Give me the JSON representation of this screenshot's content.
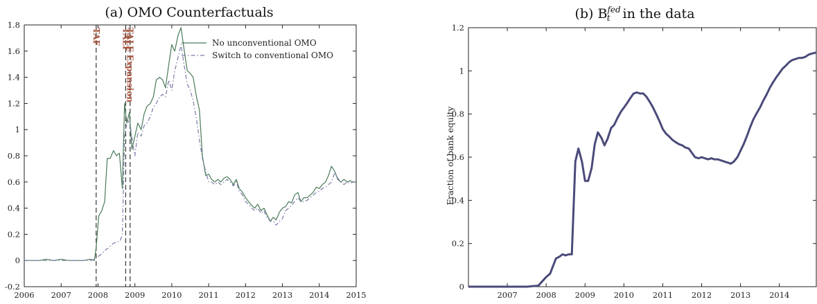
{
  "chart_data": [
    {
      "type": "line",
      "title": "(a) OMO Counterfactuals",
      "xlabel": "",
      "ylabel": "",
      "xlim": [
        2006,
        2015
      ],
      "ylim": [
        -0.2,
        1.8
      ],
      "x_ticks": [
        "2006",
        "2007",
        "2008",
        "2009",
        "2010",
        "2011",
        "2012",
        "2013",
        "2014",
        "2015"
      ],
      "y_ticks": [
        "-0.2",
        "0",
        "0.2",
        "0.4",
        "0.6",
        "0.8",
        "1",
        "1.2",
        "1.4",
        "1.6",
        "1.8"
      ],
      "grid": false,
      "legend_position": "top-right",
      "vlines": [
        {
          "x": 2007.95,
          "label": "TAF"
        },
        {
          "x": 2008.75,
          "label": "TALF"
        },
        {
          "x": 2008.87,
          "label": "TALF Expansion"
        }
      ],
      "series": [
        {
          "name": "No unconventional OMO",
          "color": "#4a7a5a",
          "style": "solid",
          "x": [
            2006.0,
            2006.2,
            2006.4,
            2006.6,
            2006.8,
            2007.0,
            2007.2,
            2007.4,
            2007.6,
            2007.8,
            2007.9,
            2007.95,
            2008.02,
            2008.1,
            2008.18,
            2008.25,
            2008.33,
            2008.42,
            2008.5,
            2008.58,
            2008.66,
            2008.72,
            2008.78,
            2008.85,
            2008.92,
            2009.0,
            2009.08,
            2009.17,
            2009.25,
            2009.33,
            2009.42,
            2009.5,
            2009.58,
            2009.67,
            2009.75,
            2009.83,
            2009.92,
            2010.0,
            2010.08,
            2010.17,
            2010.25,
            2010.33,
            2010.42,
            2010.5,
            2010.58,
            2010.67,
            2010.75,
            2010.83,
            2010.92,
            2011.0,
            2011.08,
            2011.17,
            2011.25,
            2011.33,
            2011.42,
            2011.5,
            2011.58,
            2011.67,
            2011.75,
            2011.83,
            2011.92,
            2012.0,
            2012.08,
            2012.17,
            2012.25,
            2012.33,
            2012.42,
            2012.5,
            2012.58,
            2012.67,
            2012.75,
            2012.83,
            2012.92,
            2013.0,
            2013.08,
            2013.17,
            2013.25,
            2013.33,
            2013.42,
            2013.5,
            2013.58,
            2013.67,
            2013.75,
            2013.83,
            2013.92,
            2014.0,
            2014.08,
            2014.17,
            2014.25,
            2014.33,
            2014.42,
            2014.5,
            2014.58,
            2014.67,
            2014.75,
            2014.83,
            2014.92,
            2015.0
          ],
          "y": [
            0.0,
            0.0,
            0.0,
            0.01,
            0.0,
            0.01,
            0.0,
            0.0,
            0.0,
            0.01,
            0.0,
            0.1,
            0.34,
            0.38,
            0.45,
            0.78,
            0.78,
            0.84,
            0.8,
            0.82,
            0.55,
            1.2,
            1.05,
            1.13,
            0.85,
            0.95,
            1.05,
            1.0,
            1.12,
            1.18,
            1.2,
            1.25,
            1.38,
            1.4,
            1.38,
            1.32,
            1.5,
            1.65,
            1.6,
            1.72,
            1.78,
            1.62,
            1.45,
            1.43,
            1.4,
            1.25,
            1.15,
            0.8,
            0.65,
            0.66,
            0.62,
            0.6,
            0.62,
            0.6,
            0.63,
            0.64,
            0.62,
            0.58,
            0.62,
            0.55,
            0.52,
            0.48,
            0.45,
            0.42,
            0.4,
            0.43,
            0.38,
            0.4,
            0.35,
            0.3,
            0.33,
            0.31,
            0.37,
            0.4,
            0.41,
            0.45,
            0.44,
            0.5,
            0.52,
            0.45,
            0.48,
            0.48,
            0.5,
            0.52,
            0.56,
            0.55,
            0.58,
            0.6,
            0.65,
            0.72,
            0.68,
            0.62,
            0.6,
            0.62,
            0.6,
            0.61,
            0.6,
            0.6
          ]
        },
        {
          "name": "Switch to conventional OMO",
          "color": "#7b7aa8",
          "style": "dashdot",
          "x": [
            2006.0,
            2006.2,
            2006.4,
            2006.6,
            2006.8,
            2007.0,
            2007.2,
            2007.4,
            2007.6,
            2007.8,
            2007.9,
            2008.0,
            2008.1,
            2008.2,
            2008.3,
            2008.4,
            2008.5,
            2008.6,
            2008.66,
            2008.72,
            2008.8,
            2008.88,
            2008.95,
            2009.0,
            2009.08,
            2009.17,
            2009.25,
            2009.33,
            2009.42,
            2009.5,
            2009.58,
            2009.67,
            2009.75,
            2009.83,
            2009.92,
            2010.0,
            2010.08,
            2010.17,
            2010.25,
            2010.33,
            2010.42,
            2010.5,
            2010.58,
            2010.67,
            2010.75,
            2010.83,
            2010.92,
            2011.0,
            2011.08,
            2011.17,
            2011.25,
            2011.33,
            2011.42,
            2011.5,
            2011.58,
            2011.67,
            2011.75,
            2011.83,
            2011.92,
            2012.0,
            2012.08,
            2012.17,
            2012.25,
            2012.33,
            2012.42,
            2012.5,
            2012.58,
            2012.67,
            2012.75,
            2012.83,
            2012.92,
            2013.0,
            2013.08,
            2013.17,
            2013.25,
            2013.33,
            2013.42,
            2013.5,
            2013.58,
            2013.67,
            2013.75,
            2013.83,
            2013.92,
            2014.0,
            2014.08,
            2014.17,
            2014.25,
            2014.33,
            2014.42,
            2014.5,
            2014.58,
            2014.67,
            2014.75,
            2014.83,
            2014.92,
            2015.0
          ],
          "y": [
            0.0,
            0.0,
            0.0,
            0.0,
            0.0,
            0.0,
            0.0,
            0.0,
            0.0,
            0.0,
            0.01,
            0.03,
            0.05,
            0.08,
            0.1,
            0.13,
            0.14,
            0.15,
            0.2,
            0.95,
            1.08,
            1.02,
            0.88,
            0.8,
            0.98,
            0.95,
            1.03,
            1.05,
            1.1,
            1.17,
            1.2,
            1.25,
            1.27,
            1.25,
            1.38,
            1.3,
            1.45,
            1.55,
            1.65,
            1.5,
            1.35,
            1.3,
            1.22,
            1.08,
            0.92,
            0.78,
            0.68,
            0.6,
            0.6,
            0.58,
            0.6,
            0.58,
            0.6,
            0.62,
            0.6,
            0.57,
            0.6,
            0.53,
            0.5,
            0.45,
            0.43,
            0.4,
            0.38,
            0.4,
            0.36,
            0.38,
            0.33,
            0.3,
            0.3,
            0.27,
            0.3,
            0.32,
            0.38,
            0.4,
            0.42,
            0.45,
            0.48,
            0.45,
            0.45,
            0.46,
            0.48,
            0.5,
            0.52,
            0.53,
            0.55,
            0.56,
            0.58,
            0.6,
            0.67,
            0.63,
            0.6,
            0.58,
            0.6,
            0.59,
            0.6,
            0.6
          ]
        }
      ]
    },
    {
      "type": "line",
      "title": "(b) B",
      "title_sub": "t",
      "title_sup": "fed",
      "title_tail": " in the data",
      "xlabel": "",
      "ylabel": "Fraction of bank equity",
      "xlim": [
        2006,
        2014.95
      ],
      "ylim": [
        0,
        1.2
      ],
      "x_ticks": [
        "2007",
        "2008",
        "2009",
        "2010",
        "2011",
        "2012",
        "2013",
        "2014"
      ],
      "y_ticks": [
        "0",
        "0.2",
        "0.4",
        "0.6",
        "0.8",
        "1",
        "1.2"
      ],
      "grid": false,
      "series": [
        {
          "name": "",
          "color": "#4a4a7a",
          "style": "solid",
          "x": [
            2006.0,
            2006.5,
            2007.0,
            2007.5,
            2007.8,
            2008.0,
            2008.1,
            2008.25,
            2008.35,
            2008.42,
            2008.5,
            2008.58,
            2008.66,
            2008.75,
            2008.83,
            2008.92,
            2009.0,
            2009.08,
            2009.17,
            2009.25,
            2009.33,
            2009.42,
            2009.5,
            2009.58,
            2009.67,
            2009.75,
            2009.83,
            2009.92,
            2010.0,
            2010.08,
            2010.17,
            2010.25,
            2010.33,
            2010.42,
            2010.5,
            2010.58,
            2010.67,
            2010.75,
            2010.83,
            2010.92,
            2011.0,
            2011.08,
            2011.17,
            2011.25,
            2011.33,
            2011.42,
            2011.5,
            2011.58,
            2011.67,
            2011.75,
            2011.83,
            2011.92,
            2012.0,
            2012.08,
            2012.17,
            2012.25,
            2012.33,
            2012.42,
            2012.5,
            2012.58,
            2012.67,
            2012.75,
            2012.83,
            2012.92,
            2013.0,
            2013.08,
            2013.17,
            2013.25,
            2013.33,
            2013.42,
            2013.5,
            2013.58,
            2013.67,
            2013.75,
            2013.83,
            2013.92,
            2014.0,
            2014.08,
            2014.17,
            2014.25,
            2014.33,
            2014.42,
            2014.5,
            2014.58,
            2014.67,
            2014.75,
            2014.83,
            2014.95
          ],
          "y": [
            0.0,
            0.0,
            0.0,
            0.0,
            0.005,
            0.045,
            0.06,
            0.13,
            0.14,
            0.15,
            0.145,
            0.15,
            0.15,
            0.58,
            0.64,
            0.58,
            0.49,
            0.49,
            0.55,
            0.66,
            0.715,
            0.69,
            0.655,
            0.685,
            0.735,
            0.75,
            0.78,
            0.81,
            0.83,
            0.85,
            0.875,
            0.895,
            0.9,
            0.895,
            0.895,
            0.88,
            0.855,
            0.83,
            0.8,
            0.765,
            0.73,
            0.71,
            0.695,
            0.68,
            0.67,
            0.66,
            0.655,
            0.645,
            0.64,
            0.62,
            0.6,
            0.595,
            0.6,
            0.595,
            0.59,
            0.595,
            0.59,
            0.59,
            0.585,
            0.58,
            0.575,
            0.57,
            0.58,
            0.6,
            0.63,
            0.66,
            0.7,
            0.74,
            0.775,
            0.805,
            0.83,
            0.86,
            0.89,
            0.92,
            0.945,
            0.97,
            0.99,
            1.01,
            1.025,
            1.04,
            1.05,
            1.055,
            1.06,
            1.06,
            1.065,
            1.075,
            1.08,
            1.085
          ]
        }
      ]
    }
  ]
}
